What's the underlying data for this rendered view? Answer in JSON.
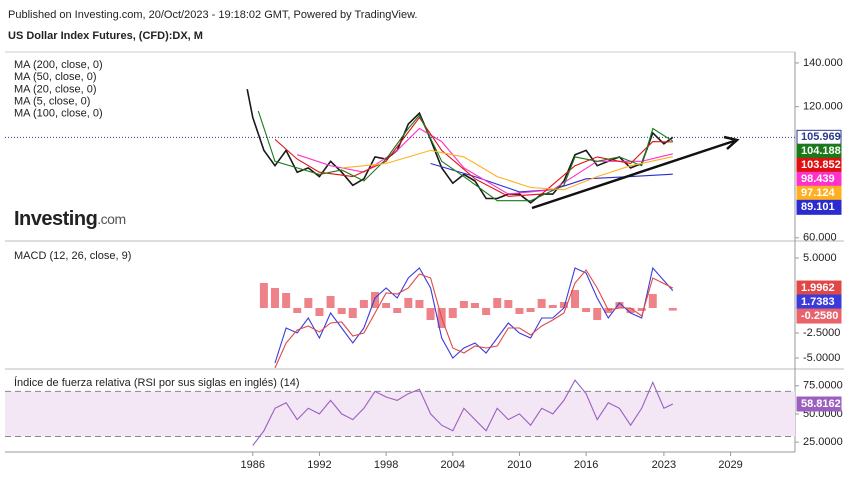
{
  "header": {
    "published": "Published on Investing.com, 20/Oct/2023 - 19:18:02 GMT, Powered by TradingView.",
    "title": "US Dollar Index Futures, (CFD):DX, M",
    "logo": "Investing",
    "logo_suffix": ".com"
  },
  "chart_data": [
    {
      "type": "line",
      "xlim": [
        1963.7,
        2034.8
      ],
      "ylim": [
        59,
        145
      ],
      "yticks": [
        {
          "value": 140,
          "label": "140.000"
        },
        {
          "value": 120,
          "label": "120.000"
        },
        {
          "value": 60,
          "label": "60.000"
        }
      ],
      "annotation": "trendline",
      "series": [
        {
          "color": "#1a1a1a",
          "x": [
            1985.5,
            1986,
            1987,
            1988,
            1989,
            1990,
            1991,
            1992,
            1993,
            1994,
            1995,
            1996,
            1997,
            1998,
            1999,
            2000,
            2001,
            2002,
            2003,
            2004,
            2005,
            2006,
            2007,
            2008,
            2009,
            2010,
            2011,
            2012,
            2013,
            2014,
            2015,
            2016,
            2017,
            2018,
            2019,
            2020,
            2021,
            2022,
            2023,
            2023.8
          ],
          "values": [
            128,
            115,
            100,
            93,
            100,
            90,
            92,
            88,
            95,
            90,
            84,
            87,
            97,
            96,
            100,
            112,
            117,
            105,
            92,
            85,
            89,
            86,
            78,
            78,
            80,
            80,
            76,
            80,
            80,
            86,
            98,
            100,
            93,
            95,
            97,
            92,
            94,
            108,
            103,
            105.969
          ],
          "last": 105.969
        },
        {
          "name": "MA (200, close, 0)",
          "color": "#2b2bd0",
          "x": [
            2002,
            2006,
            2010,
            2013,
            2016,
            2020,
            2023.8
          ],
          "values": [
            94,
            88,
            81,
            82,
            87,
            88,
            89.101
          ],
          "last": 89.101
        },
        {
          "name": "MA (50, close, 0)",
          "color": "#ff33cc",
          "x": [
            1990,
            1993,
            1996,
            1999,
            2001,
            2003,
            2005,
            2009,
            2013,
            2017,
            2021,
            2023.8
          ],
          "values": [
            98,
            93,
            90,
            100,
            110,
            104,
            92,
            80,
            82,
            95,
            95,
            98.439
          ],
          "last": 98.439
        },
        {
          "name": "MA (20, close, 0)",
          "color": "#e01010",
          "x": [
            1988,
            1990,
            1992,
            1995,
            1998,
            2001,
            2003,
            2006,
            2009,
            2012,
            2015,
            2017,
            2020,
            2022,
            2023.8
          ],
          "values": [
            105,
            96,
            90,
            88,
            95,
            115,
            100,
            87,
            79,
            80,
            93,
            97,
            94,
            104,
            103.852
          ],
          "last": 103.852
        },
        {
          "name": "MA (5, close, 0)",
          "color": "#1a7a1a",
          "x": [
            1986.5,
            1988,
            1990,
            1992,
            1994,
            1996,
            1998,
            2000,
            2001,
            2003,
            2005,
            2008,
            2011,
            2014,
            2015,
            2017,
            2019,
            2021,
            2022,
            2023.8
          ],
          "values": [
            118,
            95,
            92,
            89,
            91,
            86,
            96,
            110,
            116,
            95,
            88,
            77,
            77,
            84,
            97,
            95,
            97,
            93,
            110,
            104.188
          ],
          "last": 104.188
        },
        {
          "name": "MA (100, close, 0)",
          "color": "#ffb020",
          "x": [
            1994,
            1998,
            2002,
            2005,
            2008,
            2011,
            2014,
            2017,
            2020,
            2023.8
          ],
          "values": [
            92,
            94,
            100,
            97,
            88,
            83,
            82,
            88,
            93,
            97.124
          ],
          "last": 97.124
        }
      ]
    },
    {
      "type": "line",
      "title": "MACD (12, 26, close, 9)",
      "ylim": [
        -6,
        6.5
      ],
      "yticks": [
        {
          "value": 5,
          "label": "5.0000"
        },
        {
          "value": -2.5,
          "label": "-2.5000"
        },
        {
          "value": -5,
          "label": "-5.0000"
        }
      ],
      "histogram": {
        "color": "#e8636b",
        "x": [
          1987,
          1988,
          1989,
          1990,
          1991,
          1992,
          1993,
          1994,
          1995,
          1996,
          1997,
          1998,
          1999,
          2000,
          2001,
          2002,
          2003,
          2004,
          2005,
          2006,
          2007,
          2008,
          2009,
          2010,
          2011,
          2012,
          2013,
          2014,
          2015,
          2016,
          2017,
          2018,
          2019,
          2020,
          2021,
          2022,
          2023.8
        ],
        "values": [
          2.5,
          2,
          1.5,
          -0.5,
          1,
          -0.8,
          1.2,
          -0.6,
          -1,
          0.8,
          1.6,
          0.5,
          -0.5,
          1,
          0.8,
          -1.2,
          -2,
          -1,
          0.7,
          0.5,
          -0.7,
          1,
          0.8,
          -0.6,
          -0.4,
          0.9,
          0.3,
          0.6,
          1.8,
          -0.4,
          -1.2,
          -0.5,
          0.6,
          -0.5,
          -0.3,
          1.4,
          -0.258
        ],
        "last": {
          "value": -0.258,
          "label": "-0.2580"
        }
      },
      "series": [
        {
          "color": "#3b3bdc",
          "x": [
            1988,
            1989,
            1990,
            1991,
            1992,
            1993,
            1994,
            1995,
            1996,
            1997,
            1998,
            1999,
            2000,
            2001,
            2002,
            2003,
            2004,
            2005,
            2006,
            2007,
            2008,
            2009,
            2010,
            2011,
            2012,
            2013,
            2014,
            2015,
            2016,
            2017,
            2018,
            2019,
            2020,
            2021,
            2022,
            2023.8
          ],
          "values": [
            -5.5,
            -2,
            -2.5,
            -1,
            -3,
            -0.5,
            -2,
            -3.5,
            -2,
            1,
            2,
            1,
            3,
            4,
            2,
            -3,
            -5,
            -4,
            -3.5,
            -4.5,
            -3,
            -1.5,
            -2.5,
            -3,
            -1,
            -1,
            0,
            4,
            3.5,
            1,
            -1,
            0.5,
            -0.5,
            -1,
            4,
            1.7383
          ],
          "last": 1.7383
        },
        {
          "color": "#e04848",
          "x": [
            1988,
            1989,
            1990,
            1991,
            1992,
            1993,
            1994,
            1995,
            1996,
            1997,
            1998,
            1999,
            2000,
            2001,
            2002,
            2003,
            2004,
            2005,
            2006,
            2007,
            2008,
            2009,
            2010,
            2011,
            2012,
            2013,
            2014,
            2015,
            2016,
            2017,
            2018,
            2019,
            2020,
            2021,
            2022,
            2023.8
          ],
          "values": [
            -6,
            -3.5,
            -2.2,
            -1.8,
            -2.4,
            -1.5,
            -1.4,
            -2.8,
            -2.5,
            -0.5,
            1.5,
            1.4,
            2,
            3.4,
            3,
            -1,
            -4,
            -4.5,
            -3.8,
            -4,
            -3.8,
            -2,
            -2,
            -2.7,
            -1.8,
            -1.2,
            -0.5,
            2.5,
            3.8,
            2,
            -0.2,
            0,
            0,
            -0.8,
            3,
            1.9962
          ],
          "last": 1.9962
        }
      ]
    },
    {
      "type": "line",
      "title": "Índice de fuerza relativa (RSI por sus siglas en inglés) (14)",
      "ylim": [
        18,
        89
      ],
      "yticks": [
        {
          "value": 75,
          "label": "75.0000"
        },
        {
          "value": 50,
          "label": "50.0000"
        },
        {
          "value": 25,
          "label": "25.0000"
        }
      ],
      "band": [
        30,
        70
      ],
      "xticks": [
        1986,
        1992,
        1998,
        2004,
        2010,
        2016,
        2023,
        2029
      ],
      "series": [
        {
          "color": "#9b5fc0",
          "x": [
            1986,
            1987,
            1988,
            1989,
            1990,
            1991,
            1992,
            1993,
            1994,
            1995,
            1996,
            1997,
            1998,
            1999,
            2000,
            2001,
            2002,
            2003,
            2004,
            2005,
            2006,
            2007,
            2008,
            2009,
            2010,
            2011,
            2012,
            2013,
            2014,
            2015,
            2016,
            2017,
            2018,
            2019,
            2020,
            2021,
            2022,
            2023,
            2023.8
          ],
          "values": [
            22,
            35,
            55,
            60,
            45,
            55,
            50,
            62,
            50,
            45,
            55,
            70,
            65,
            62,
            68,
            72,
            50,
            40,
            35,
            55,
            45,
            35,
            55,
            45,
            50,
            40,
            55,
            50,
            62,
            80,
            68,
            45,
            60,
            55,
            40,
            55,
            78,
            55,
            58.8162
          ],
          "last": 58.8162
        }
      ]
    }
  ]
}
